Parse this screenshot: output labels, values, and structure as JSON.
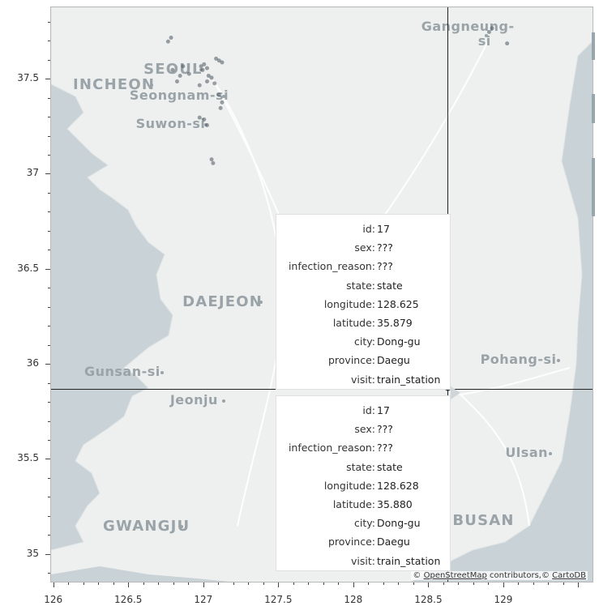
{
  "map": {
    "attribution": {
      "copyright": "©",
      "osm_link": "OpenStreetMap",
      "contributors": "contributors,",
      "copyright2": "©",
      "carto_link": "CartoDB"
    },
    "city_labels": [
      {
        "name": "SEOUL",
        "lon": 126.98,
        "lat": 37.55
      },
      {
        "name": "INCHEON",
        "lon": 126.65,
        "lat": 37.47
      },
      {
        "name": "Seongnam-si",
        "lon": 127.13,
        "lat": 37.41
      },
      {
        "name": "Suwon-si",
        "lon": 127.01,
        "lat": 37.26
      },
      {
        "name": "Gangneung-si",
        "lon": 128.88,
        "lat": 37.73
      },
      {
        "name": "DAEJEON",
        "lon": 127.38,
        "lat": 36.33
      },
      {
        "name": "Gunsan-si",
        "lon": 126.72,
        "lat": 35.96
      },
      {
        "name": "Jeonju",
        "lon": 127.13,
        "lat": 35.81
      },
      {
        "name": "Pohang-si",
        "lon": 129.36,
        "lat": 36.02
      },
      {
        "name": "Ulsan",
        "lon": 129.31,
        "lat": 35.53
      },
      {
        "name": "BUSAN",
        "lon": 129.04,
        "lat": 35.18
      },
      {
        "name": "GWANGJU",
        "lon": 126.85,
        "lat": 35.15
      }
    ],
    "points": [
      {
        "lon": 126.98,
        "lat": 37.57
      },
      {
        "lon": 126.99,
        "lat": 37.55
      },
      {
        "lon": 127.0,
        "lat": 37.58
      },
      {
        "lon": 127.02,
        "lat": 37.56
      },
      {
        "lon": 127.03,
        "lat": 37.52
      },
      {
        "lon": 127.05,
        "lat": 37.51
      },
      {
        "lon": 127.1,
        "lat": 37.6
      },
      {
        "lon": 127.12,
        "lat": 37.59
      },
      {
        "lon": 127.08,
        "lat": 37.61
      },
      {
        "lon": 126.9,
        "lat": 37.53
      },
      {
        "lon": 126.86,
        "lat": 37.57
      },
      {
        "lon": 126.84,
        "lat": 37.52
      },
      {
        "lon": 126.82,
        "lat": 37.49
      },
      {
        "lon": 126.79,
        "lat": 37.55
      },
      {
        "lon": 126.97,
        "lat": 37.47
      },
      {
        "lon": 127.02,
        "lat": 37.49
      },
      {
        "lon": 127.07,
        "lat": 37.48
      },
      {
        "lon": 127.1,
        "lat": 37.42
      },
      {
        "lon": 127.12,
        "lat": 37.38
      },
      {
        "lon": 127.11,
        "lat": 37.35
      },
      {
        "lon": 127.0,
        "lat": 37.29
      },
      {
        "lon": 127.02,
        "lat": 37.26
      },
      {
        "lon": 126.97,
        "lat": 37.3
      },
      {
        "lon": 127.05,
        "lat": 37.08
      },
      {
        "lon": 127.06,
        "lat": 37.06
      },
      {
        "lon": 128.9,
        "lat": 37.75
      },
      {
        "lon": 128.92,
        "lat": 37.77
      },
      {
        "lon": 129.02,
        "lat": 37.69
      },
      {
        "lon": 126.78,
        "lat": 37.72
      },
      {
        "lon": 126.76,
        "lat": 37.7
      },
      {
        "lon": 128.625,
        "lat": 35.879
      }
    ]
  },
  "axes": {
    "x_ticks": [
      "126",
      "126.5",
      "127",
      "127.5",
      "128",
      "128.5",
      "129"
    ],
    "x_values": [
      126,
      126.5,
      127,
      127.5,
      128,
      128.5,
      129
    ],
    "y_ticks": [
      "35",
      "35.5",
      "36",
      "36.5",
      "37",
      "37.5"
    ],
    "y_values": [
      35,
      35.5,
      36,
      36.5,
      37,
      37.5
    ],
    "xlim": [
      125.98,
      129.6
    ],
    "ylim": [
      34.85,
      37.88
    ]
  },
  "crosshair": {
    "lon": 128.62,
    "lat": 35.874
  },
  "tooltips": [
    {
      "rows": [
        {
          "key": "id:",
          "value": "17"
        },
        {
          "key": "sex:",
          "value": "???"
        },
        {
          "key": "infection_reason:",
          "value": "???"
        },
        {
          "key": "state:",
          "value": "state"
        },
        {
          "key": "longitude:",
          "value": "128.625"
        },
        {
          "key": "latitude:",
          "value": "35.879"
        },
        {
          "key": "city:",
          "value": "Dong-gu"
        },
        {
          "key": "province:",
          "value": "Daegu"
        },
        {
          "key": "visit:",
          "value": "train_station"
        }
      ]
    },
    {
      "rows": [
        {
          "key": "id:",
          "value": "17"
        },
        {
          "key": "sex:",
          "value": "???"
        },
        {
          "key": "infection_reason:",
          "value": "???"
        },
        {
          "key": "state:",
          "value": "state"
        },
        {
          "key": "longitude:",
          "value": "128.628"
        },
        {
          "key": "latitude:",
          "value": "35.880"
        },
        {
          "key": "city:",
          "value": "Dong-gu"
        },
        {
          "key": "province:",
          "value": "Daegu"
        },
        {
          "key": "visit:",
          "value": "train_station"
        }
      ]
    }
  ],
  "colors": {
    "land": "#f0f1f1",
    "sea": "#c9d2d6",
    "label": "#9aa3a8",
    "point": "#4a5860"
  }
}
